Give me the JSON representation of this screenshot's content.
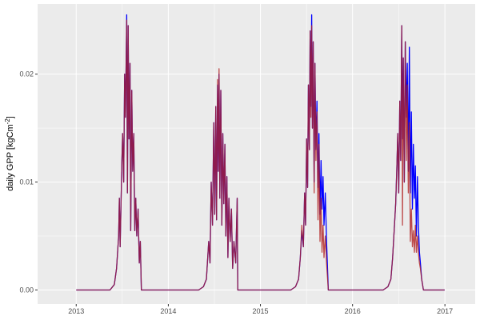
{
  "chart_data": {
    "type": "line",
    "title": "",
    "xlabel": "",
    "ylabel": "daily GPP [kgCm^-2]",
    "xlim": [
      "2012-08-01",
      "2017-05-01"
    ],
    "ylim": [
      -0.0013,
      0.0265
    ],
    "x_ticks": [
      "2013",
      "2014",
      "2015",
      "2016",
      "2017"
    ],
    "y_ticks": [
      0.0,
      0.01,
      0.02
    ],
    "y_tick_labels": [
      "0.00",
      "0.01",
      "0.02"
    ],
    "grid": true,
    "colors": {
      "panel": "#EBEBEB",
      "grid": "#FFFFFF",
      "series_a": "#0000FF",
      "series_b": "#B22222"
    },
    "x": [
      "2013-01-01",
      "2013-05-15",
      "2013-06-01",
      "2013-06-10",
      "2013-06-18",
      "2013-06-21",
      "2013-06-24",
      "2013-07-01",
      "2013-07-04",
      "2013-07-08",
      "2013-07-12",
      "2013-07-15",
      "2013-07-20",
      "2013-07-23",
      "2013-07-26",
      "2013-07-29",
      "2013-08-02",
      "2013-08-05",
      "2013-08-09",
      "2013-08-13",
      "2013-08-17",
      "2013-08-21",
      "2013-08-25",
      "2013-08-29",
      "2013-09-03",
      "2013-09-08",
      "2013-09-12",
      "2013-09-16",
      "2014-05-01",
      "2014-05-20",
      "2014-06-01",
      "2014-06-10",
      "2014-06-15",
      "2014-06-20",
      "2014-06-25",
      "2014-06-30",
      "2014-07-04",
      "2014-07-08",
      "2014-07-11",
      "2014-07-15",
      "2014-07-18",
      "2014-07-21",
      "2014-07-24",
      "2014-07-28",
      "2014-08-01",
      "2014-08-05",
      "2014-08-09",
      "2014-08-13",
      "2014-08-17",
      "2014-08-21",
      "2014-08-25",
      "2014-08-29",
      "2014-09-03",
      "2014-09-08",
      "2014-09-13",
      "2014-09-18",
      "2014-09-25",
      "2014-10-01",
      "2014-10-03",
      "2015-05-01",
      "2015-05-20",
      "2015-06-01",
      "2015-06-08",
      "2015-06-14",
      "2015-06-20",
      "2015-06-25",
      "2015-06-29",
      "2015-07-03",
      "2015-07-07",
      "2015-07-10",
      "2015-07-14",
      "2015-07-17",
      "2015-07-20",
      "2015-07-23",
      "2015-07-26",
      "2015-07-29",
      "2015-08-02",
      "2015-08-05",
      "2015-08-09",
      "2015-08-13",
      "2015-08-17",
      "2015-08-21",
      "2015-08-25",
      "2015-08-29",
      "2015-09-02",
      "2015-09-06",
      "2015-09-10",
      "2015-09-15",
      "2015-09-20",
      "2015-09-27",
      "2016-05-01",
      "2016-05-20",
      "2016-06-01",
      "2016-06-08",
      "2016-06-14",
      "2016-06-20",
      "2016-06-24",
      "2016-06-28",
      "2016-07-02",
      "2016-07-06",
      "2016-07-10",
      "2016-07-14",
      "2016-07-17",
      "2016-07-20",
      "2016-07-24",
      "2016-07-28",
      "2016-08-01",
      "2016-08-05",
      "2016-08-09",
      "2016-08-13",
      "2016-08-17",
      "2016-08-21",
      "2016-08-25",
      "2016-08-29",
      "2016-09-02",
      "2016-09-06",
      "2016-09-10",
      "2016-09-14",
      "2016-09-18",
      "2016-09-22",
      "2016-09-26",
      "2016-10-01",
      "2016-10-08",
      "2016-12-31"
    ],
    "series": [
      {
        "values": [
          0,
          0,
          0.0005,
          0.002,
          0.005,
          0.0085,
          0.004,
          0.012,
          0.0145,
          0.01,
          0.02,
          0.016,
          0.0255,
          0.009,
          0.0245,
          0.014,
          0.021,
          0.0055,
          0.0185,
          0.011,
          0.0145,
          0.0055,
          0.0085,
          0.005,
          0.0075,
          0.0025,
          0.0045,
          0,
          0,
          0.0003,
          0.001,
          0.0045,
          0.0025,
          0.01,
          0.006,
          0.0155,
          0.007,
          0.017,
          0.0065,
          0.019,
          0.011,
          0.02,
          0.0085,
          0.0185,
          0.006,
          0.0145,
          0.008,
          0.0135,
          0.005,
          0.0105,
          0.003,
          0.0085,
          0.0045,
          0.0075,
          0.002,
          0.0045,
          0.0025,
          0.0085,
          0,
          0,
          0.0003,
          0.001,
          0.003,
          0.0055,
          0.004,
          0.009,
          0.006,
          0.014,
          0.0095,
          0.019,
          0.013,
          0.024,
          0.017,
          0.0255,
          0.015,
          0.023,
          0.01,
          0.021,
          0.013,
          0.0175,
          0.0095,
          0.0145,
          0.007,
          0.012,
          0.0075,
          0.0105,
          0.006,
          0.009,
          0.0045,
          0,
          0,
          0.0003,
          0.001,
          0.003,
          0.0055,
          0.008,
          0.011,
          0.0145,
          0.009,
          0.0175,
          0.012,
          0.0245,
          0.014,
          0.0215,
          0.01,
          0.023,
          0.016,
          0.021,
          0.011,
          0.0225,
          0.009,
          0.0165,
          0.0075,
          0.0135,
          0.0085,
          0.0115,
          0.005,
          0.0105,
          0.006,
          0.0035,
          0.0025,
          0.001,
          0,
          0
        ]
      },
      {
        "values": [
          0,
          0,
          0.0005,
          0.002,
          0.005,
          0.0085,
          0.004,
          0.012,
          0.0145,
          0.01,
          0.02,
          0.016,
          0.025,
          0.009,
          0.0245,
          0.014,
          0.021,
          0.0055,
          0.0185,
          0.011,
          0.0145,
          0.0055,
          0.0085,
          0.005,
          0.0075,
          0.0025,
          0.0045,
          0,
          0,
          0.0003,
          0.001,
          0.0045,
          0.0025,
          0.01,
          0.006,
          0.0155,
          0.007,
          0.017,
          0.0065,
          0.0195,
          0.011,
          0.0205,
          0.0085,
          0.0185,
          0.006,
          0.0145,
          0.008,
          0.0135,
          0.005,
          0.0105,
          0.003,
          0.0085,
          0.0045,
          0.0075,
          0.002,
          0.0045,
          0.0025,
          0.0085,
          0,
          0,
          0.0003,
          0.001,
          0.003,
          0.006,
          0.004,
          0.009,
          0.006,
          0.014,
          0.0095,
          0.019,
          0.013,
          0.024,
          0.016,
          0.0245,
          0.015,
          0.023,
          0.009,
          0.021,
          0.012,
          0.0165,
          0.0065,
          0.0135,
          0.0045,
          0.0085,
          0.0035,
          0.006,
          0.003,
          0.005,
          0.0025,
          0,
          0,
          0.0003,
          0.001,
          0.003,
          0.0055,
          0.008,
          0.011,
          0.0145,
          0.009,
          0.0175,
          0.012,
          0.0245,
          0.006,
          0.0215,
          0.01,
          0.023,
          0.012,
          0.019,
          0.009,
          0.0155,
          0.0045,
          0.0075,
          0.004,
          0.0055,
          0.0035,
          0.006,
          0.0035,
          0.005,
          0.0035,
          0.0025,
          0.002,
          0.001,
          0,
          0
        ]
      }
    ]
  }
}
